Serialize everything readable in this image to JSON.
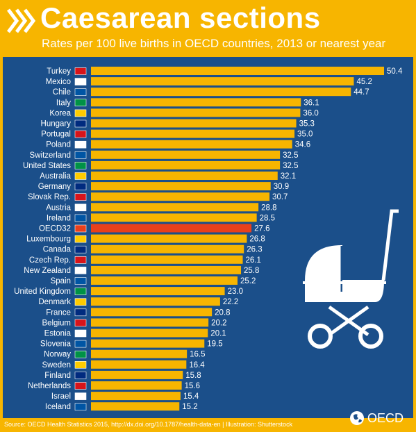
{
  "header": {
    "title": "Caesarean sections",
    "subtitle": "Rates per 100 live births in OECD countries, 2013 or nearest year"
  },
  "footer": {
    "source": "Source: OECD Health Statistics 2015, http://dx.doi.org/10.1787/health-data-en | Illustration: Shutterstock",
    "logo_text": "OECD"
  },
  "colors": {
    "background": "#f7b500",
    "panel": "#1b4f8a",
    "bar": "#f7b500",
    "highlight_bar": "#e8401c",
    "text": "#ffffff"
  },
  "chart_data": {
    "type": "bar",
    "orientation": "horizontal",
    "title": "Caesarean sections",
    "subtitle": "Rates per 100 live births in OECD countries, 2013 or nearest year",
    "highlight": "OECD32",
    "xlim": [
      0,
      52
    ],
    "grid": false,
    "categories": [
      "Turkey",
      "Mexico",
      "Chile",
      "Italy",
      "Korea",
      "Hungary",
      "Portugal",
      "Poland",
      "Switzerland",
      "United States",
      "Australia",
      "Germany",
      "Slovak Rep.",
      "Austria",
      "Ireland",
      "OECD32",
      "Luxembourg",
      "Canada",
      "Czech Rep.",
      "New Zealand",
      "Spain",
      "United Kingdom",
      "Denmark",
      "France",
      "Belgium",
      "Estonia",
      "Slovenia",
      "Norway",
      "Sweden",
      "Finland",
      "Netherlands",
      "Israel",
      "Iceland"
    ],
    "values": [
      50.4,
      45.2,
      44.7,
      36.1,
      36.0,
      35.3,
      35.0,
      34.6,
      32.5,
      32.5,
      32.1,
      30.9,
      30.7,
      28.8,
      28.5,
      27.6,
      26.8,
      26.3,
      26.1,
      25.8,
      25.2,
      23.0,
      22.2,
      20.8,
      20.2,
      20.1,
      19.5,
      16.5,
      16.4,
      15.8,
      15.6,
      15.4,
      15.2
    ],
    "value_labels": [
      "50.4",
      "45.2",
      "44.7",
      "36.1",
      "36.0",
      "35.3",
      "35.0",
      "34.6",
      "32.5",
      "32.5",
      "32.1",
      "30.9",
      "30.7",
      "28.8",
      "28.5",
      "27.6",
      "26.8",
      "26.3",
      "26.1",
      "25.8",
      "25.2",
      "23.0",
      "22.2",
      "20.8",
      "20.2",
      "20.1",
      "19.5",
      "16.5",
      "16.4",
      "15.8",
      "15.6",
      "15.4",
      "15.2"
    ]
  }
}
